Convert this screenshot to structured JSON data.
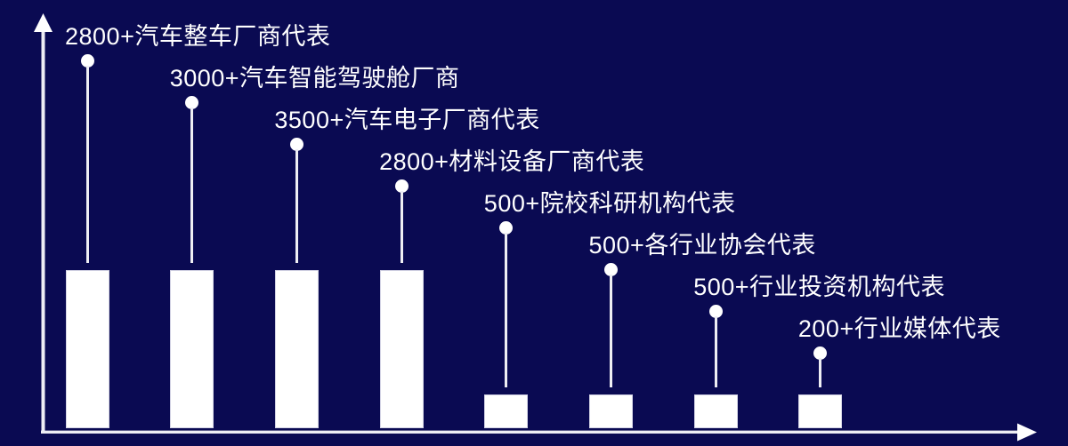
{
  "colors": {
    "background": "#0a0a52",
    "bar_fill": "#ffffff",
    "axis": "#eeeef4",
    "text": "#ffffff"
  },
  "chart_data": {
    "type": "bar",
    "style": "lollipop-annotated infographic, uniform tall/short bars",
    "title": "",
    "xlabel": "",
    "ylabel": "",
    "grid": false,
    "legend": false,
    "axis_arrows": true,
    "categories": [
      "汽车整车厂商代表",
      "汽车智能驾驶舱厂商",
      "汽车电子厂商代表",
      "材料设备厂商代表",
      "院校科研机构代表",
      "各行业协会代表",
      "行业投资机构代表",
      "行业媒体代表"
    ],
    "values": [
      2800,
      3000,
      3500,
      2800,
      500,
      500,
      500,
      200
    ],
    "point_labels": [
      "2800+汽车整车厂商代表",
      "3000+汽车智能驾驶舱厂商",
      "3500+汽车电子厂商代表",
      "2800+材料设备厂商代表",
      "500+院校科研机构代表",
      "500+各行业协会代表",
      "500+行业投资机构代表",
      "200+行业媒体代表"
    ]
  }
}
